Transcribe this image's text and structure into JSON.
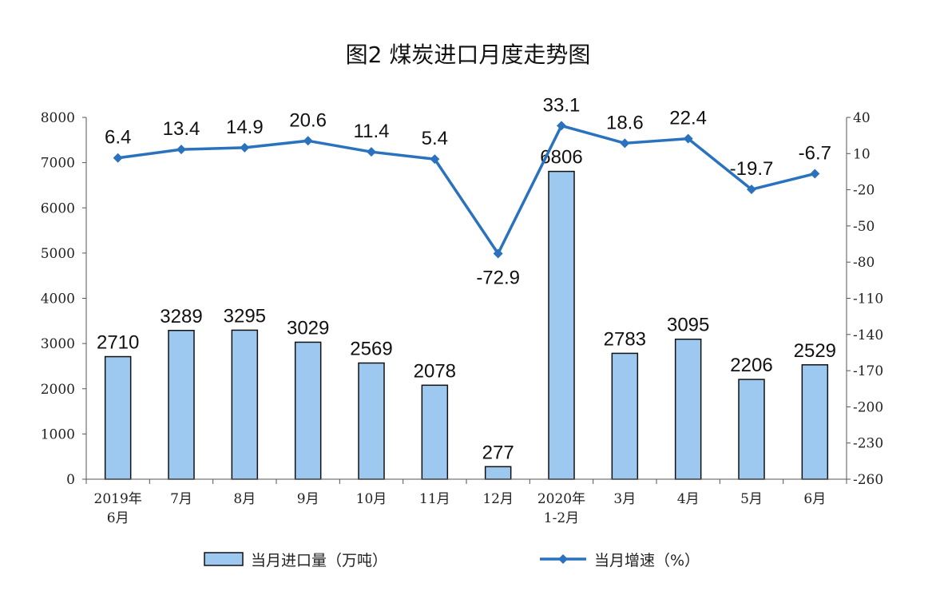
{
  "chart_data": {
    "type": "bar+line",
    "title": "图2  煤炭进口月度走势图",
    "categories": [
      [
        "2019年",
        "6月"
      ],
      [
        "7月"
      ],
      [
        "8月"
      ],
      [
        "9月"
      ],
      [
        "10月"
      ],
      [
        "11月"
      ],
      [
        "12月"
      ],
      [
        "2020年",
        "1-2月"
      ],
      [
        "3月"
      ],
      [
        "4月"
      ],
      [
        "5月"
      ],
      [
        "6月"
      ]
    ],
    "series": [
      {
        "name": "当月进口量（万吨）",
        "type": "bar",
        "axis": "left",
        "values": [
          2710,
          3289,
          3295,
          3029,
          2569,
          2078,
          277,
          6806,
          2783,
          3095,
          2206,
          2529
        ],
        "labels": [
          "2710",
          "3289",
          "3295",
          "3029",
          "2569",
          "2078",
          "277",
          "6806",
          "2783",
          "3095",
          "2206",
          "2529"
        ]
      },
      {
        "name": "当月增速（%）",
        "type": "line",
        "axis": "right",
        "values": [
          6.4,
          13.4,
          14.9,
          20.6,
          11.4,
          5.4,
          -72.9,
          33.1,
          18.6,
          22.4,
          -19.7,
          -6.7
        ],
        "labels": [
          "6.4",
          "13.4",
          "14.9",
          "20.6",
          "11.4",
          "5.4",
          "-72.9",
          "33.1",
          "18.6",
          "22.4",
          "-19.7",
          "-6.7"
        ]
      }
    ],
    "y_left": {
      "min": 0,
      "max": 8000,
      "ticks": [
        "0",
        "1000",
        "2000",
        "3000",
        "4000",
        "5000",
        "6000",
        "7000",
        "8000"
      ]
    },
    "y_right": {
      "min": -260,
      "max": 40,
      "ticks": [
        "40",
        "10",
        "-20",
        "-50",
        "-80",
        "-110",
        "-140",
        "-170",
        "-200",
        "-230",
        "-260"
      ]
    },
    "legend_position": "bottom",
    "colors": {
      "bar_fill": "#9dc9f1",
      "bar_stroke": "#111111",
      "line": "#2a72bd"
    }
  }
}
